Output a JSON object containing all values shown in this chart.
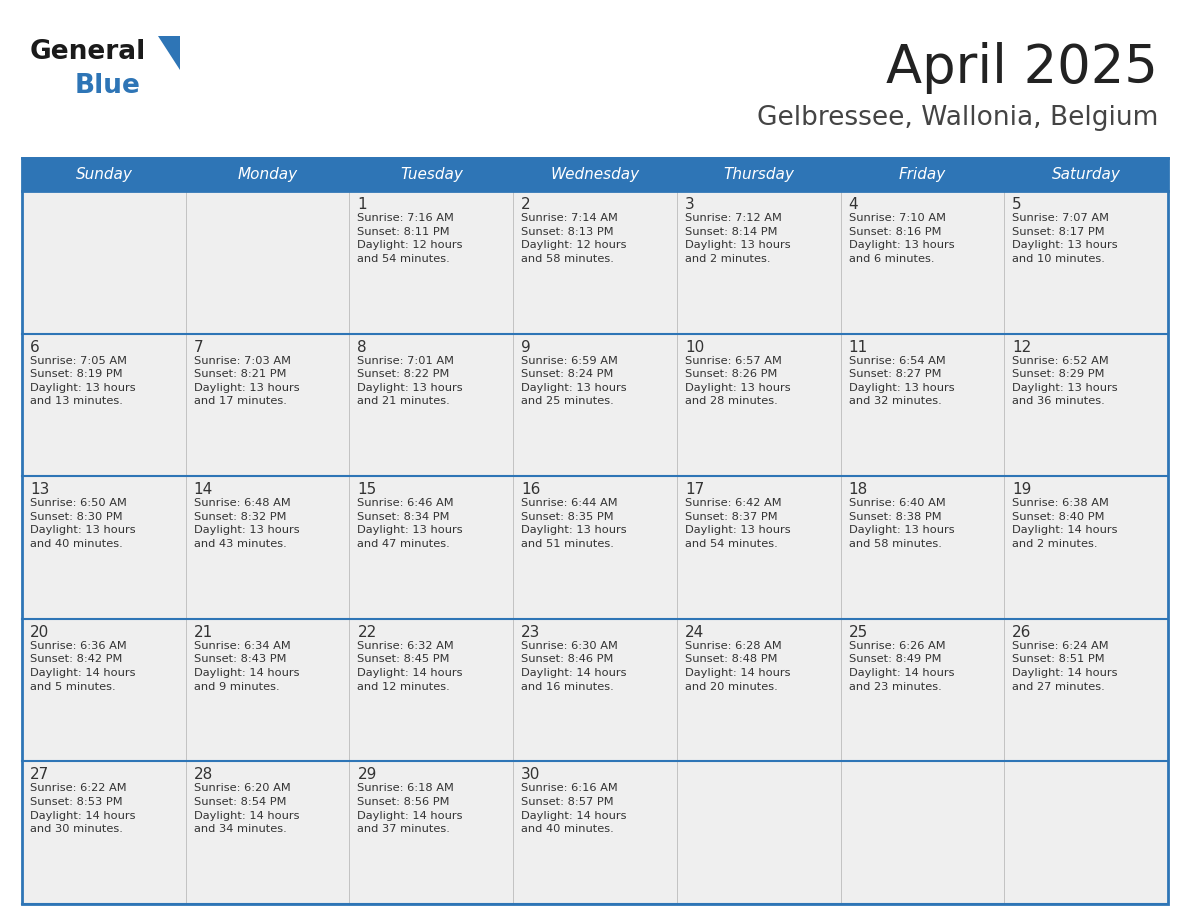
{
  "title": "April 2025",
  "subtitle": "Gelbressee, Wallonia, Belgium",
  "days_of_week": [
    "Sunday",
    "Monday",
    "Tuesday",
    "Wednesday",
    "Thursday",
    "Friday",
    "Saturday"
  ],
  "header_bg": "#2E75B6",
  "header_text": "#FFFFFF",
  "row_bg": "#EFEFEF",
  "cell_text_color": "#333333",
  "day_num_color": "#333333",
  "border_color": "#2E75B6",
  "row_divider_color": "#2E75B6",
  "title_color": "#222222",
  "subtitle_color": "#444444",
  "calendar_data": [
    [
      {
        "day": null,
        "info": null
      },
      {
        "day": null,
        "info": null
      },
      {
        "day": 1,
        "info": "Sunrise: 7:16 AM\nSunset: 8:11 PM\nDaylight: 12 hours\nand 54 minutes."
      },
      {
        "day": 2,
        "info": "Sunrise: 7:14 AM\nSunset: 8:13 PM\nDaylight: 12 hours\nand 58 minutes."
      },
      {
        "day": 3,
        "info": "Sunrise: 7:12 AM\nSunset: 8:14 PM\nDaylight: 13 hours\nand 2 minutes."
      },
      {
        "day": 4,
        "info": "Sunrise: 7:10 AM\nSunset: 8:16 PM\nDaylight: 13 hours\nand 6 minutes."
      },
      {
        "day": 5,
        "info": "Sunrise: 7:07 AM\nSunset: 8:17 PM\nDaylight: 13 hours\nand 10 minutes."
      }
    ],
    [
      {
        "day": 6,
        "info": "Sunrise: 7:05 AM\nSunset: 8:19 PM\nDaylight: 13 hours\nand 13 minutes."
      },
      {
        "day": 7,
        "info": "Sunrise: 7:03 AM\nSunset: 8:21 PM\nDaylight: 13 hours\nand 17 minutes."
      },
      {
        "day": 8,
        "info": "Sunrise: 7:01 AM\nSunset: 8:22 PM\nDaylight: 13 hours\nand 21 minutes."
      },
      {
        "day": 9,
        "info": "Sunrise: 6:59 AM\nSunset: 8:24 PM\nDaylight: 13 hours\nand 25 minutes."
      },
      {
        "day": 10,
        "info": "Sunrise: 6:57 AM\nSunset: 8:26 PM\nDaylight: 13 hours\nand 28 minutes."
      },
      {
        "day": 11,
        "info": "Sunrise: 6:54 AM\nSunset: 8:27 PM\nDaylight: 13 hours\nand 32 minutes."
      },
      {
        "day": 12,
        "info": "Sunrise: 6:52 AM\nSunset: 8:29 PM\nDaylight: 13 hours\nand 36 minutes."
      }
    ],
    [
      {
        "day": 13,
        "info": "Sunrise: 6:50 AM\nSunset: 8:30 PM\nDaylight: 13 hours\nand 40 minutes."
      },
      {
        "day": 14,
        "info": "Sunrise: 6:48 AM\nSunset: 8:32 PM\nDaylight: 13 hours\nand 43 minutes."
      },
      {
        "day": 15,
        "info": "Sunrise: 6:46 AM\nSunset: 8:34 PM\nDaylight: 13 hours\nand 47 minutes."
      },
      {
        "day": 16,
        "info": "Sunrise: 6:44 AM\nSunset: 8:35 PM\nDaylight: 13 hours\nand 51 minutes."
      },
      {
        "day": 17,
        "info": "Sunrise: 6:42 AM\nSunset: 8:37 PM\nDaylight: 13 hours\nand 54 minutes."
      },
      {
        "day": 18,
        "info": "Sunrise: 6:40 AM\nSunset: 8:38 PM\nDaylight: 13 hours\nand 58 minutes."
      },
      {
        "day": 19,
        "info": "Sunrise: 6:38 AM\nSunset: 8:40 PM\nDaylight: 14 hours\nand 2 minutes."
      }
    ],
    [
      {
        "day": 20,
        "info": "Sunrise: 6:36 AM\nSunset: 8:42 PM\nDaylight: 14 hours\nand 5 minutes."
      },
      {
        "day": 21,
        "info": "Sunrise: 6:34 AM\nSunset: 8:43 PM\nDaylight: 14 hours\nand 9 minutes."
      },
      {
        "day": 22,
        "info": "Sunrise: 6:32 AM\nSunset: 8:45 PM\nDaylight: 14 hours\nand 12 minutes."
      },
      {
        "day": 23,
        "info": "Sunrise: 6:30 AM\nSunset: 8:46 PM\nDaylight: 14 hours\nand 16 minutes."
      },
      {
        "day": 24,
        "info": "Sunrise: 6:28 AM\nSunset: 8:48 PM\nDaylight: 14 hours\nand 20 minutes."
      },
      {
        "day": 25,
        "info": "Sunrise: 6:26 AM\nSunset: 8:49 PM\nDaylight: 14 hours\nand 23 minutes."
      },
      {
        "day": 26,
        "info": "Sunrise: 6:24 AM\nSunset: 8:51 PM\nDaylight: 14 hours\nand 27 minutes."
      }
    ],
    [
      {
        "day": 27,
        "info": "Sunrise: 6:22 AM\nSunset: 8:53 PM\nDaylight: 14 hours\nand 30 minutes."
      },
      {
        "day": 28,
        "info": "Sunrise: 6:20 AM\nSunset: 8:54 PM\nDaylight: 14 hours\nand 34 minutes."
      },
      {
        "day": 29,
        "info": "Sunrise: 6:18 AM\nSunset: 8:56 PM\nDaylight: 14 hours\nand 37 minutes."
      },
      {
        "day": 30,
        "info": "Sunrise: 6:16 AM\nSunset: 8:57 PM\nDaylight: 14 hours\nand 40 minutes."
      },
      {
        "day": null,
        "info": null
      },
      {
        "day": null,
        "info": null
      },
      {
        "day": null,
        "info": null
      }
    ]
  ]
}
